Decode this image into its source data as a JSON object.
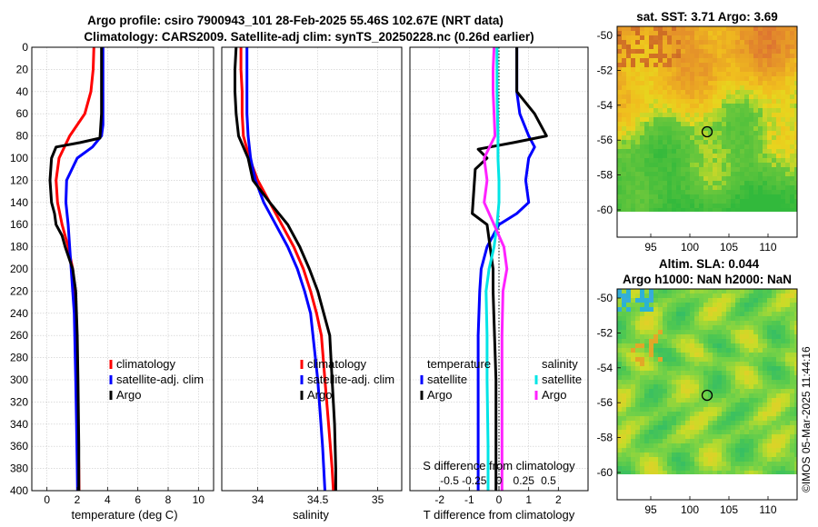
{
  "title": {
    "line1": "Argo profile: csiro 7900943_101 28-Feb-2025 55.46S 102.67E (NRT data)",
    "line2": "Climatology: CARS2009. Satellite-adj clim: synTS_20250228.nc (0.26d earlier)"
  },
  "depth_ticks": [
    0,
    20,
    40,
    60,
    80,
    100,
    120,
    140,
    160,
    180,
    200,
    220,
    240,
    260,
    280,
    300,
    320,
    340,
    360,
    380,
    400
  ],
  "timestamp": "©IMOS 05-Mar-2025 11:44:16",
  "colors": {
    "climatology": "#ff0000",
    "satellite": "#0000ff",
    "argo": "#000000",
    "sal_satellite": "#00e5e5",
    "sal_argo": "#ff22ff"
  },
  "chart_data": [
    {
      "id": "temperature",
      "type": "line",
      "xlabel": "temperature (deg C)",
      "ylabel": "",
      "xlim": [
        -1,
        11
      ],
      "ylim": [
        400,
        0
      ],
      "xticks": [
        0,
        2,
        4,
        6,
        8,
        10
      ],
      "xticklabels": [
        "0",
        "2",
        "4",
        "6",
        "8",
        "10"
      ],
      "grid": true,
      "legend": [
        "climatology",
        "satellite-adj. clim",
        "Argo"
      ],
      "series": [
        {
          "name": "climatology",
          "color": "#ff0000",
          "x": [
            3.1,
            3.05,
            2.9,
            2.5,
            1.5,
            0.8,
            0.6,
            0.7,
            1.0,
            1.4,
            1.7,
            1.85,
            1.95,
            2.0,
            2.05,
            2.1,
            2.12
          ],
          "y": [
            0,
            20,
            40,
            60,
            80,
            100,
            120,
            140,
            160,
            180,
            200,
            220,
            260,
            300,
            340,
            380,
            400
          ]
        },
        {
          "name": "satellite-adj. clim",
          "color": "#0000ff",
          "x": [
            3.7,
            3.7,
            3.7,
            3.7,
            3.7,
            3.6,
            3.0,
            2.0,
            1.3,
            1.25,
            1.4,
            1.6,
            1.8,
            1.9,
            1.95,
            2.0,
            2.02
          ],
          "y": [
            0,
            20,
            40,
            60,
            70,
            80,
            90,
            100,
            120,
            140,
            160,
            200,
            240,
            300,
            340,
            380,
            400
          ]
        },
        {
          "name": "Argo",
          "color": "#000000",
          "x": [
            3.6,
            3.6,
            3.6,
            3.6,
            3.5,
            2.2,
            0.6,
            0.3,
            0.2,
            0.3,
            0.5,
            0.6,
            1.0,
            1.2,
            1.7,
            1.9,
            2.0,
            2.05,
            2.1,
            2.1
          ],
          "y": [
            0,
            20,
            40,
            60,
            82,
            86,
            90,
            100,
            120,
            140,
            150,
            160,
            170,
            180,
            200,
            220,
            260,
            300,
            360,
            400
          ]
        }
      ]
    },
    {
      "id": "salinity",
      "type": "line",
      "xlabel": "salinity",
      "ylabel": "",
      "xlim": [
        33.7,
        35.2
      ],
      "ylim": [
        400,
        0
      ],
      "xticks": [
        34,
        34.5,
        35
      ],
      "xticklabels": [
        "34",
        "34.5",
        "35"
      ],
      "grid": true,
      "legend": [
        "climatology",
        "satellite-adj. clim",
        "Argo"
      ],
      "series": [
        {
          "name": "climatology",
          "color": "#ff0000",
          "x": [
            33.86,
            33.86,
            33.87,
            33.87,
            33.88,
            33.93,
            34.0,
            34.1,
            34.2,
            34.3,
            34.38,
            34.44,
            34.49,
            34.53,
            34.56,
            34.59,
            34.62,
            34.63
          ],
          "y": [
            0,
            20,
            40,
            60,
            80,
            100,
            120,
            140,
            160,
            180,
            200,
            220,
            240,
            260,
            300,
            340,
            380,
            400
          ]
        },
        {
          "name": "satellite-adj. clim",
          "color": "#0000ff",
          "x": [
            33.91,
            33.91,
            33.91,
            33.91,
            33.92,
            33.94,
            33.98,
            34.05,
            34.15,
            34.25,
            34.33,
            34.39,
            34.44,
            34.5,
            34.54,
            34.56
          ],
          "y": [
            0,
            20,
            40,
            60,
            80,
            100,
            120,
            140,
            160,
            180,
            200,
            220,
            240,
            300,
            360,
            400
          ]
        },
        {
          "name": "Argo",
          "color": "#000000",
          "x": [
            33.82,
            33.81,
            33.81,
            33.82,
            33.84,
            33.92,
            33.96,
            34.1,
            34.25,
            34.35,
            34.43,
            34.5,
            34.55,
            34.6,
            34.62,
            34.64,
            34.65,
            34.65
          ],
          "y": [
            0,
            20,
            40,
            60,
            80,
            100,
            120,
            140,
            160,
            180,
            200,
            220,
            240,
            260,
            300,
            340,
            380,
            400
          ]
        }
      ]
    },
    {
      "id": "difference",
      "type": "line",
      "xlabel": "T difference from climatology",
      "x2label": "S difference from climatology",
      "ylabel": "",
      "xlim": [
        -3,
        3
      ],
      "x2lim": [
        -0.9,
        0.9
      ],
      "ylim": [
        400,
        0
      ],
      "xticks": [
        -2,
        -1,
        0,
        1,
        2
      ],
      "xticklabels": [
        "-2",
        "-1",
        "0",
        "1",
        "2"
      ],
      "x2ticks": [
        -0.5,
        -0.25,
        0,
        0.25,
        0.5
      ],
      "x2ticklabels": [
        "-0.5",
        "-0.25",
        "0",
        "0.25",
        "0.5"
      ],
      "grid": true,
      "legend_temperature": {
        "heading": "temperature",
        "items": [
          "satellite",
          "Argo"
        ]
      },
      "legend_salinity": {
        "heading": "salinity",
        "items": [
          "satellite",
          "Argo"
        ]
      },
      "series": [
        {
          "name": "temperature satellite",
          "axis": "T",
          "color": "#0000ff",
          "x": [
            0.6,
            0.6,
            0.6,
            0.7,
            1.0,
            1.2,
            1.0,
            0.9,
            1.0,
            0.6,
            0.0,
            -0.4,
            -0.6,
            -0.65,
            -0.7,
            -0.7,
            -0.7,
            -0.7
          ],
          "y": [
            0,
            20,
            40,
            60,
            80,
            90,
            100,
            120,
            140,
            150,
            160,
            180,
            200,
            220,
            260,
            300,
            360,
            400
          ]
        },
        {
          "name": "temperature Argo",
          "axis": "T",
          "color": "#000000",
          "x": [
            0.6,
            0.6,
            0.6,
            1.2,
            1.6,
            0.5,
            -0.7,
            -0.4,
            -0.8,
            -0.9,
            -0.4,
            -0.3,
            -0.2,
            -0.2,
            -0.1,
            -0.1
          ],
          "y": [
            0,
            20,
            40,
            60,
            80,
            86,
            92,
            100,
            110,
            150,
            160,
            180,
            200,
            220,
            300,
            400
          ]
        },
        {
          "name": "salinity satellite",
          "axis": "S",
          "color": "#00e5e5",
          "x": [
            -0.02,
            -0.02,
            -0.01,
            -0.01,
            0.0,
            0.0,
            -0.02,
            -0.05,
            -0.1,
            -0.13,
            -0.12,
            -0.12,
            -0.11,
            -0.11
          ],
          "y": [
            0,
            40,
            80,
            100,
            120,
            140,
            160,
            180,
            200,
            220,
            260,
            300,
            360,
            400
          ]
        },
        {
          "name": "salinity Argo",
          "axis": "S",
          "color": "#ff22ff",
          "x": [
            -0.05,
            -0.06,
            -0.06,
            -0.05,
            -0.04,
            -0.15,
            -0.12,
            -0.15,
            -0.05,
            0.05,
            0.08,
            0.04,
            0.03,
            0.03,
            0.03
          ],
          "y": [
            0,
            20,
            40,
            60,
            80,
            100,
            120,
            140,
            160,
            180,
            200,
            220,
            260,
            300,
            400
          ]
        }
      ]
    }
  ],
  "maps": [
    {
      "id": "sst",
      "title1": "sat. SST: 3.71 Argo: 3.69",
      "title2": "",
      "xticks": [
        "95",
        "100",
        "105",
        "110"
      ],
      "yticks": [
        "-50",
        "-52",
        "-54",
        "-56",
        "-58",
        "-60"
      ]
    },
    {
      "id": "sla",
      "title1": "Altim. SLA: 0.044",
      "title2": "Argo h1000: NaN h2000: NaN",
      "xticks": [
        "95",
        "100",
        "105",
        "110"
      ],
      "yticks": [
        "-50",
        "-52",
        "-54",
        "-56",
        "-58",
        "-60"
      ]
    }
  ]
}
